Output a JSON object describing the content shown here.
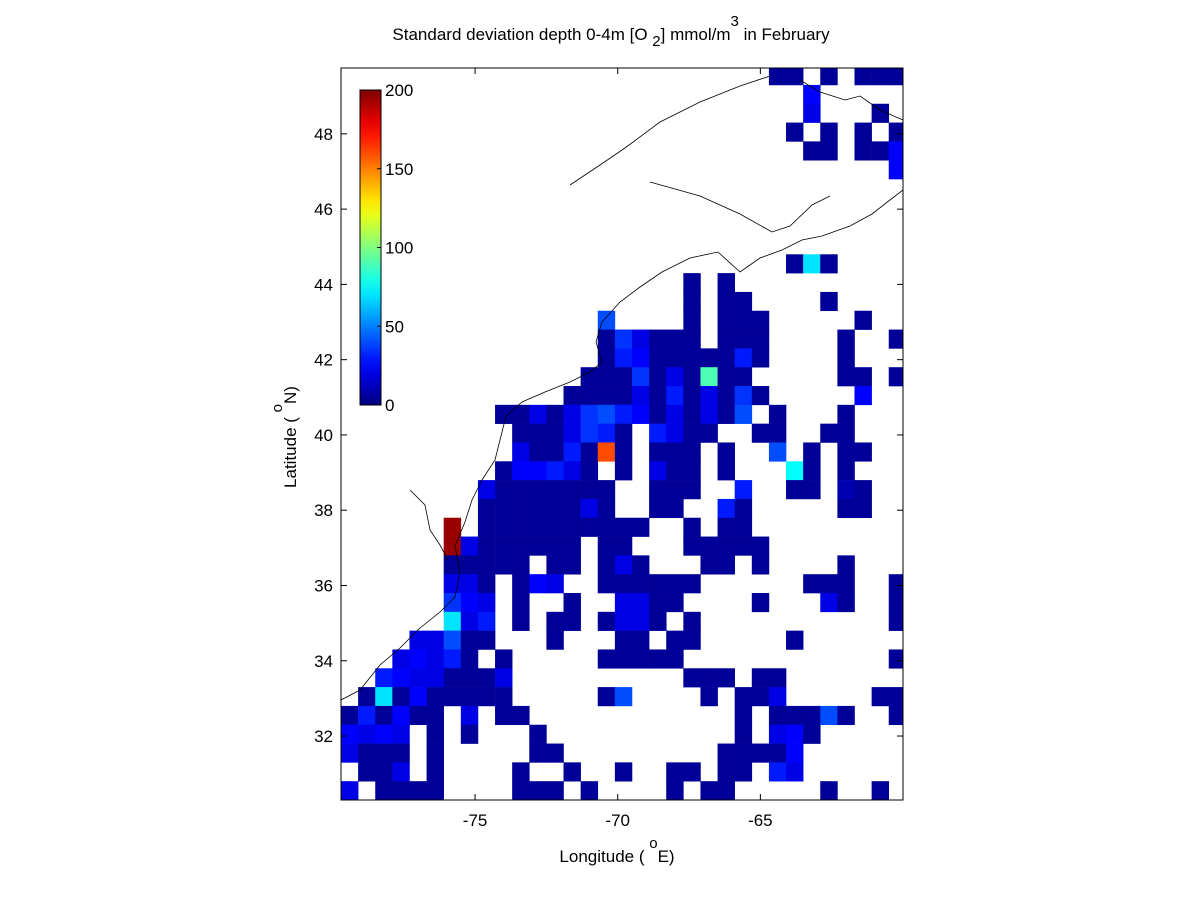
{
  "chart_data": {
    "type": "heatmap",
    "title": [
      "Standard deviation depth 0-4m [O ",
      "2",
      "] mmol/m",
      "3",
      " in February"
    ],
    "x_label": [
      "Longitude ( ",
      "o",
      "E)"
    ],
    "y_label": [
      "Latitude ( ",
      "o",
      "N)"
    ],
    "xlim": [
      -79.7,
      -60
    ],
    "ylim": [
      30.3,
      49.75
    ],
    "xticks": [
      -75,
      -70,
      -65
    ],
    "yticks": [
      32,
      34,
      36,
      38,
      40,
      42,
      44,
      46,
      48
    ],
    "colormap": "jet",
    "clim": [
      0,
      200
    ],
    "colorbar_ticks": [
      0,
      50,
      100,
      150,
      200
    ],
    "rows": [
      {
        "y": 49.55,
        "x": [
          -64.4,
          -63.8,
          -62.6,
          -61.4,
          -60.8,
          -60.2
        ],
        "values": [
          5,
          5,
          5,
          5,
          5,
          5
        ]
      },
      {
        "y": 49.05,
        "x": [
          -63.2
        ],
        "values": [
          25
        ]
      },
      {
        "y": 48.55,
        "x": [
          -63.2,
          -60.8
        ],
        "values": [
          20,
          5
        ]
      },
      {
        "y": 48.05,
        "x": [
          -63.8,
          -62.6,
          -61.4,
          -60.2
        ],
        "values": [
          5,
          5,
          5,
          5
        ]
      },
      {
        "y": 47.55,
        "x": [
          -63.2,
          -62.6,
          -61.4,
          -60.8,
          -60.2
        ],
        "values": [
          5,
          5,
          5,
          5,
          25
        ]
      },
      {
        "y": 47.05,
        "x": [
          -60.2
        ],
        "values": [
          25
        ]
      },
      {
        "y": 44.55,
        "x": [
          -63.8,
          -63.2,
          -62.6
        ],
        "values": [
          5,
          70,
          5
        ]
      },
      {
        "y": 44.05,
        "x": [
          -67.4,
          -66.2
        ],
        "values": [
          5,
          5
        ]
      },
      {
        "y": 43.55,
        "x": [
          -67.4,
          -66.2,
          -65.6,
          -62.6
        ],
        "values": [
          5,
          5,
          5,
          5
        ]
      },
      {
        "y": 43.05,
        "x": [
          -70.4,
          -67.4,
          -66.2,
          -65.6,
          -65,
          -61.4
        ],
        "values": [
          40,
          5,
          5,
          5,
          5,
          5
        ]
      },
      {
        "y": 42.55,
        "x": [
          -70.4,
          -69.8,
          -69.2,
          -68.6,
          -68,
          -67.4,
          -66.2,
          -65.6,
          -65,
          -62,
          -60.2
        ],
        "values": [
          5,
          35,
          20,
          5,
          5,
          5,
          5,
          5,
          5,
          5,
          5
        ]
      },
      {
        "y": 42.05,
        "x": [
          -70.4,
          -69.8,
          -69.2,
          -68.6,
          -68,
          -67.4,
          -66.8,
          -66.2,
          -65.6,
          -65,
          -62
        ],
        "values": [
          5,
          30,
          25,
          5,
          5,
          5,
          5,
          5,
          30,
          5,
          5
        ]
      },
      {
        "y": 41.55,
        "x": [
          -71,
          -70.4,
          -69.8,
          -69.2,
          -68.6,
          -68,
          -67.4,
          -66.8,
          -66.2,
          -65.6,
          -62,
          -61.4,
          -60.2
        ],
        "values": [
          5,
          5,
          5,
          35,
          5,
          20,
          5,
          90,
          5,
          5,
          5,
          5,
          5
        ]
      },
      {
        "y": 41.05,
        "x": [
          -71.6,
          -71,
          -70.4,
          -69.8,
          -69.2,
          -68.6,
          -68,
          -67.4,
          -66.8,
          -66.2,
          -65.6,
          -65,
          -61.4
        ],
        "values": [
          5,
          5,
          5,
          5,
          20,
          5,
          30,
          5,
          20,
          5,
          35,
          5,
          25
        ]
      },
      {
        "y": 40.55,
        "x": [
          -74,
          -73.4,
          -72.8,
          -72.2,
          -71.6,
          -71,
          -70.4,
          -69.8,
          -69.2,
          -68.6,
          -68,
          -67.4,
          -66.8,
          -66.2,
          -65.6,
          -64.4,
          -62
        ],
        "values": [
          5,
          5,
          20,
          5,
          20,
          35,
          40,
          30,
          25,
          5,
          20,
          5,
          20,
          5,
          40,
          5,
          5
        ]
      },
      {
        "y": 40.05,
        "x": [
          -73.4,
          -72.8,
          -72.2,
          -71.6,
          -71,
          -70.4,
          -69.8,
          -68.6,
          -68,
          -67.4,
          -66.8,
          -65,
          -64.4,
          -62.6,
          -62
        ],
        "values": [
          5,
          5,
          5,
          20,
          35,
          30,
          5,
          30,
          20,
          5,
          5,
          5,
          5,
          5,
          5
        ]
      },
      {
        "y": 39.55,
        "x": [
          -73.4,
          -72.8,
          -72.2,
          -71.6,
          -71,
          -70.4,
          -69.8,
          -68.6,
          -68,
          -67.4,
          -66.2,
          -64.4,
          -63.2,
          -62,
          -61.4
        ],
        "values": [
          20,
          5,
          5,
          30,
          5,
          160,
          5,
          5,
          5,
          5,
          5,
          40,
          5,
          5,
          5
        ]
      },
      {
        "y": 39.05,
        "x": [
          -74,
          -73.4,
          -72.8,
          -72.2,
          -71.6,
          -71,
          -69.8,
          -68.6,
          -68,
          -67.4,
          -66.2,
          -63.8,
          -63.2,
          -62
        ],
        "values": [
          5,
          25,
          25,
          30,
          20,
          5,
          5,
          20,
          5,
          5,
          5,
          75,
          5,
          5
        ]
      },
      {
        "y": 38.55,
        "x": [
          -74.6,
          -74,
          -73.4,
          -72.8,
          -72.2,
          -71.6,
          -71,
          -70.4,
          -68.6,
          -68,
          -67.4,
          -65.6,
          -63.8,
          -63.2,
          -62,
          -61.4
        ],
        "values": [
          20,
          5,
          5,
          5,
          5,
          5,
          5,
          5,
          5,
          5,
          5,
          30,
          5,
          5,
          10,
          5
        ]
      },
      {
        "y": 38.05,
        "x": [
          -74.6,
          -74,
          -73.4,
          -72.8,
          -72.2,
          -71.6,
          -71,
          -70.4,
          -68.6,
          -68,
          -66.2,
          -65.6,
          -62,
          -61.4
        ],
        "values": [
          5,
          5,
          5,
          5,
          5,
          5,
          20,
          5,
          5,
          5,
          30,
          5,
          5,
          5
        ]
      },
      {
        "y": 37.55,
        "x": [
          -75.8,
          -74.6,
          -74,
          -73.4,
          -72.8,
          -72.2,
          -71.6,
          -71,
          -70.4,
          -69.8,
          -69.2,
          -67.4,
          -66.2,
          -65.6
        ],
        "values": [
          195,
          5,
          5,
          5,
          5,
          5,
          5,
          5,
          5,
          5,
          5,
          5,
          5,
          5
        ]
      },
      {
        "y": 37.05,
        "x": [
          -75.8,
          -75.2,
          -74.6,
          -74,
          -73.4,
          -72.8,
          -72.2,
          -71.6,
          -70.4,
          -69.8,
          -67.4,
          -66.8,
          -66.2,
          -65.6,
          -65
        ],
        "values": [
          195,
          20,
          5,
          5,
          5,
          5,
          5,
          5,
          5,
          5,
          5,
          5,
          5,
          5,
          5
        ]
      },
      {
        "y": 36.55,
        "x": [
          -75.8,
          -75.2,
          -74.6,
          -74,
          -73.4,
          -72.2,
          -71.6,
          -70.4,
          -69.8,
          -69.2,
          -66.8,
          -66.2,
          -65,
          -62
        ],
        "values": [
          5,
          5,
          5,
          5,
          5,
          5,
          5,
          5,
          20,
          5,
          5,
          5,
          5,
          5
        ]
      },
      {
        "y": 36.05,
        "x": [
          -75.8,
          -75.2,
          -74.6,
          -73.4,
          -72.8,
          -72.2,
          -70.4,
          -69.8,
          -69.2,
          -68.6,
          -68,
          -67.4,
          -63.2,
          -62.6,
          -62,
          -60.2
        ],
        "values": [
          20,
          20,
          5,
          5,
          25,
          20,
          5,
          5,
          5,
          5,
          5,
          5,
          5,
          5,
          5,
          5
        ]
      },
      {
        "y": 35.55,
        "x": [
          -75.8,
          -75.2,
          -74.6,
          -73.4,
          -71.6,
          -69.8,
          -69.2,
          -68.6,
          -68,
          -65,
          -62.6,
          -62,
          -60.2
        ],
        "values": [
          35,
          25,
          20,
          5,
          5,
          20,
          20,
          5,
          5,
          5,
          20,
          5,
          5
        ]
      },
      {
        "y": 35.05,
        "x": [
          -75.8,
          -75.2,
          -74.6,
          -73.4,
          -72.2,
          -71.6,
          -70.4,
          -69.8,
          -69.2,
          -68.6,
          -67.4,
          -60.2
        ],
        "values": [
          70,
          20,
          30,
          5,
          5,
          5,
          5,
          20,
          20,
          5,
          5,
          5
        ]
      },
      {
        "y": 34.55,
        "x": [
          -77,
          -76.4,
          -75.8,
          -75.2,
          -74.6,
          -72.2,
          -69.8,
          -69.2,
          -68,
          -67.4,
          -63.8
        ],
        "values": [
          20,
          20,
          40,
          5,
          5,
          5,
          5,
          5,
          5,
          5,
          5
        ]
      },
      {
        "y": 34.05,
        "x": [
          -77.6,
          -77,
          -76.4,
          -75.8,
          -75.2,
          -74,
          -70.4,
          -69.8,
          -69.2,
          -68.6,
          -68,
          -60.2
        ],
        "values": [
          20,
          25,
          20,
          30,
          5,
          5,
          5,
          5,
          5,
          5,
          5,
          5
        ]
      },
      {
        "y": 33.55,
        "x": [
          -78.2,
          -77.6,
          -77,
          -76.4,
          -75.8,
          -75.2,
          -74.6,
          -74,
          -67.4,
          -66.8,
          -66.2,
          -65,
          -64.4
        ],
        "values": [
          30,
          25,
          20,
          20,
          5,
          5,
          5,
          20,
          5,
          5,
          5,
          5,
          5
        ]
      },
      {
        "y": 33.05,
        "x": [
          -78.8,
          -78.2,
          -77.6,
          -77,
          -76.4,
          -75.8,
          -75.2,
          -74.6,
          -74,
          -70.4,
          -69.8,
          -66.8,
          -65.6,
          -65,
          -64.4,
          -60.8,
          -60.2
        ],
        "values": [
          5,
          70,
          5,
          25,
          5,
          5,
          5,
          5,
          5,
          5,
          40,
          5,
          5,
          5,
          20,
          5,
          5
        ]
      },
      {
        "y": 32.55,
        "x": [
          -79.4,
          -78.8,
          -78.2,
          -77.6,
          -77,
          -76.4,
          -75.2,
          -74,
          -73.4,
          -65.6,
          -64.4,
          -63.8,
          -63.2,
          -62.6,
          -62,
          -60.2
        ],
        "values": [
          5,
          30,
          5,
          25,
          5,
          5,
          20,
          5,
          5,
          5,
          5,
          5,
          5,
          40,
          5,
          5
        ]
      },
      {
        "y": 32.05,
        "x": [
          -79.4,
          -78.8,
          -78.2,
          -77.6,
          -76.4,
          -75.2,
          -72.8,
          -65.6,
          -64.4,
          -63.8,
          -63.2
        ],
        "values": [
          25,
          20,
          25,
          20,
          5,
          5,
          5,
          5,
          20,
          25,
          5
        ]
      },
      {
        "y": 31.55,
        "x": [
          -79.4,
          -78.8,
          -78.2,
          -77.6,
          -76.4,
          -72.8,
          -72.2,
          -66.2,
          -65.6,
          -65,
          -64.4,
          -63.8
        ],
        "values": [
          20,
          5,
          5,
          5,
          5,
          5,
          5,
          5,
          5,
          5,
          5,
          25
        ]
      },
      {
        "y": 31.05,
        "x": [
          -78.8,
          -78.2,
          -77.6,
          -76.4,
          -73.4,
          -71.6,
          -69.8,
          -68,
          -67.4,
          -66.2,
          -65.6,
          -64.4,
          -63.8
        ],
        "values": [
          5,
          5,
          20,
          5,
          5,
          5,
          5,
          5,
          5,
          5,
          5,
          30,
          20
        ]
      },
      {
        "y": 30.55,
        "x": [
          -79.4,
          -78.2,
          -77.6,
          -77,
          -76.4,
          -73.4,
          -72.8,
          -72.2,
          -71,
          -68,
          -66.8,
          -66.2,
          -62.6,
          -60.8
        ],
        "values": [
          20,
          5,
          5,
          5,
          5,
          5,
          5,
          5,
          5,
          5,
          5,
          5,
          5,
          5
        ]
      }
    ]
  }
}
